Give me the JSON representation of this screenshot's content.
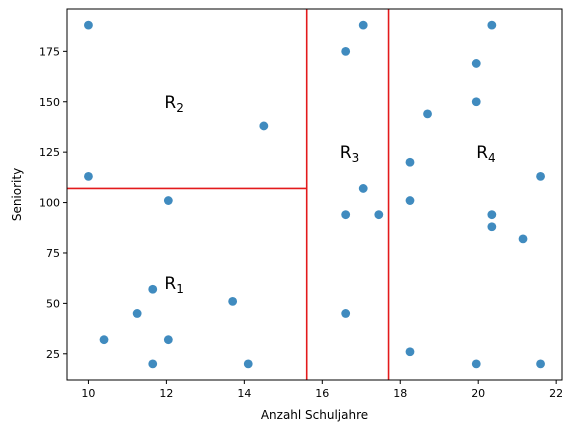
{
  "chart_data": {
    "type": "scatter",
    "title": "",
    "xlabel": "Anzahl Schuljahre",
    "ylabel": "Seniority",
    "xlim": [
      9.45,
      22.15
    ],
    "ylim": [
      12,
      196
    ],
    "xticks": [
      10,
      12,
      14,
      16,
      18,
      20,
      22
    ],
    "yticks": [
      25,
      50,
      75,
      100,
      125,
      150,
      175
    ],
    "grid": false,
    "point_color": "#1f77b4",
    "line_color": "#e31a1c",
    "points": [
      {
        "x": 10.0,
        "y": 188
      },
      {
        "x": 10.0,
        "y": 113
      },
      {
        "x": 10.4,
        "y": 32
      },
      {
        "x": 11.25,
        "y": 45
      },
      {
        "x": 11.65,
        "y": 57
      },
      {
        "x": 11.65,
        "y": 20
      },
      {
        "x": 12.05,
        "y": 101
      },
      {
        "x": 12.05,
        "y": 32
      },
      {
        "x": 13.7,
        "y": 51
      },
      {
        "x": 14.1,
        "y": 20
      },
      {
        "x": 14.5,
        "y": 138
      },
      {
        "x": 16.6,
        "y": 175
      },
      {
        "x": 16.6,
        "y": 94
      },
      {
        "x": 16.6,
        "y": 45
      },
      {
        "x": 17.05,
        "y": 188
      },
      {
        "x": 17.05,
        "y": 107
      },
      {
        "x": 17.45,
        "y": 94
      },
      {
        "x": 18.25,
        "y": 120
      },
      {
        "x": 18.25,
        "y": 101
      },
      {
        "x": 18.25,
        "y": 26
      },
      {
        "x": 18.7,
        "y": 144
      },
      {
        "x": 19.95,
        "y": 169
      },
      {
        "x": 19.95,
        "y": 150
      },
      {
        "x": 19.95,
        "y": 20
      },
      {
        "x": 20.35,
        "y": 188
      },
      {
        "x": 20.35,
        "y": 94
      },
      {
        "x": 20.35,
        "y": 88
      },
      {
        "x": 21.15,
        "y": 82
      },
      {
        "x": 21.6,
        "y": 113
      },
      {
        "x": 21.6,
        "y": 20
      }
    ],
    "splits": [
      {
        "orientation": "vertical",
        "x": 15.6
      },
      {
        "orientation": "vertical",
        "x": 17.7
      },
      {
        "orientation": "horizontal",
        "y": 107,
        "x_from": 9.45,
        "x_to": 15.6
      }
    ],
    "regions": [
      {
        "label": "R",
        "sub": "2",
        "x": 12.0,
        "y": 150
      },
      {
        "label": "R",
        "sub": "1",
        "x": 12.0,
        "y": 60
      },
      {
        "label": "R",
        "sub": "3",
        "x": 16.5,
        "y": 125
      },
      {
        "label": "R",
        "sub": "4",
        "x": 20.0,
        "y": 125
      }
    ]
  }
}
